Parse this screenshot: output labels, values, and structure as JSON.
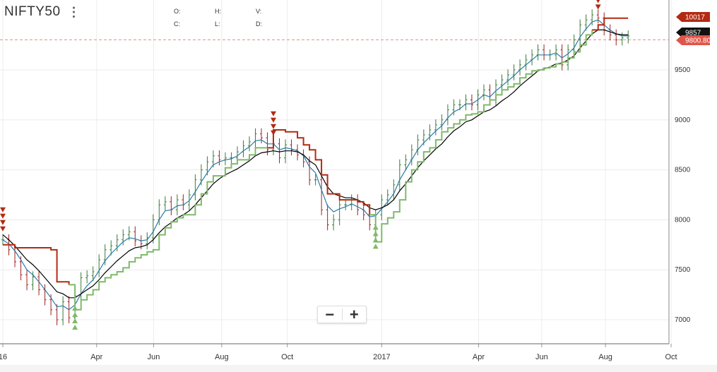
{
  "header": {
    "symbol": "NIFTY50",
    "menu_glyph": "⋮",
    "ohlc_labels": {
      "open": "O:",
      "high": "H:",
      "volume": "V:",
      "close": "C:",
      "low": "L:",
      "diff": "D:"
    }
  },
  "zoom": {
    "minus": "−",
    "plus": "+"
  },
  "price_tags": [
    {
      "label": "10017",
      "value": 10017,
      "color": "#b32a12"
    },
    {
      "label": "9857",
      "value": 9857,
      "color": "#111111"
    },
    {
      "label": "9800.80",
      "value": 9800.8,
      "color": "#e0554a"
    }
  ],
  "colors": {
    "supertrend_up": "#7fba69",
    "supertrend_down": "#b32a12",
    "ema_fast": "#2a7ba8",
    "ema_slow": "#000000",
    "bar_up": "#3a7a3a",
    "bar_down": "#a02020",
    "last_price_line": "#e88a86"
  },
  "chart_data": {
    "type": "line",
    "ylim": [
      6850,
      10200
    ],
    "yticks": [
      7000,
      7500,
      8000,
      8500,
      9000,
      9500
    ],
    "xlim": [
      0,
      109
    ],
    "xticks": [
      {
        "x": 0,
        "label": "16"
      },
      {
        "x": 15.3,
        "label": "Apr"
      },
      {
        "x": 24.6,
        "label": "Jun"
      },
      {
        "x": 35.7,
        "label": "Aug"
      },
      {
        "x": 46.4,
        "label": "Oct"
      },
      {
        "x": 61.8,
        "label": "2017"
      },
      {
        "x": 77.6,
        "label": "Apr"
      },
      {
        "x": 87.9,
        "label": "Jun"
      },
      {
        "x": 98.3,
        "label": "Aug"
      },
      {
        "x": 109,
        "label": "Oct"
      }
    ],
    "last_price": 9800.8,
    "series": [
      {
        "role": "close",
        "values": [
          7800,
          7700,
          7580,
          7450,
          7350,
          7430,
          7300,
          7200,
          7100,
          7000,
          7180,
          7020,
          7240,
          7420,
          7440,
          7480,
          7600,
          7700,
          7740,
          7800,
          7850,
          7880,
          7790,
          7760,
          7820,
          8000,
          8150,
          8180,
          8100,
          8200,
          8150,
          8250,
          8400,
          8500,
          8580,
          8640,
          8600,
          8620,
          8620,
          8680,
          8740,
          8780,
          8860,
          8820,
          8700,
          8760,
          8620,
          8750,
          8700,
          8650,
          8580,
          8400,
          8400,
          8100,
          7950,
          8000,
          8150,
          8150,
          8200,
          8100,
          8050,
          7950,
          8050,
          8200,
          8250,
          8350,
          8550,
          8600,
          8700,
          8800,
          8850,
          8900,
          8950,
          9000,
          9100,
          9150,
          9150,
          9200,
          9150,
          9250,
          9300,
          9200,
          9350,
          9400,
          9450,
          9500,
          9550,
          9600,
          9650,
          9700,
          9650,
          9650,
          9700,
          9550,
          9700,
          9800,
          9950,
          10000,
          10050,
          10020,
          9900,
          9850,
          9800,
          9820,
          9840
        ]
      },
      {
        "role": "ema_fast",
        "values": [
          7800,
          7760,
          7690,
          7600,
          7500,
          7450,
          7380,
          7300,
          7220,
          7130,
          7140,
          7100,
          7150,
          7260,
          7340,
          7400,
          7490,
          7590,
          7660,
          7720,
          7780,
          7820,
          7810,
          7790,
          7800,
          7880,
          8000,
          8090,
          8100,
          8140,
          8150,
          8190,
          8280,
          8380,
          8470,
          8550,
          8580,
          8600,
          8610,
          8640,
          8690,
          8730,
          8790,
          8800,
          8760,
          8760,
          8700,
          8720,
          8710,
          8690,
          8640,
          8530,
          8470,
          8300,
          8140,
          8080,
          8110,
          8130,
          8160,
          8130,
          8100,
          8030,
          8040,
          8110,
          8180,
          8260,
          8400,
          8500,
          8600,
          8700,
          8770,
          8830,
          8890,
          8940,
          9020,
          9080,
          9110,
          9160,
          9160,
          9200,
          9250,
          9230,
          9290,
          9340,
          9390,
          9440,
          9500,
          9550,
          9600,
          9650,
          9650,
          9650,
          9670,
          9620,
          9660,
          9720,
          9830,
          9910,
          9980,
          10000,
          9950,
          9900,
          9860,
          9840,
          9840
        ]
      },
      {
        "role": "ema_slow",
        "values": [
          7850,
          7800,
          7740,
          7670,
          7600,
          7550,
          7490,
          7420,
          7350,
          7280,
          7260,
          7220,
          7220,
          7260,
          7300,
          7340,
          7400,
          7470,
          7530,
          7590,
          7640,
          7690,
          7720,
          7730,
          7750,
          7800,
          7870,
          7930,
          7970,
          8020,
          8050,
          8090,
          8150,
          8220,
          8290,
          8360,
          8410,
          8450,
          8480,
          8510,
          8550,
          8590,
          8640,
          8670,
          8680,
          8690,
          8680,
          8690,
          8690,
          8680,
          8650,
          8590,
          8550,
          8440,
          8330,
          8260,
          8240,
          8220,
          8220,
          8200,
          8170,
          8120,
          8100,
          8120,
          8150,
          8200,
          8290,
          8360,
          8440,
          8520,
          8590,
          8650,
          8710,
          8760,
          8830,
          8890,
          8930,
          8980,
          9000,
          9040,
          9080,
          9100,
          9140,
          9190,
          9230,
          9280,
          9340,
          9390,
          9440,
          9490,
          9510,
          9530,
          9560,
          9570,
          9600,
          9640,
          9720,
          9790,
          9860,
          9900,
          9900,
          9880,
          9860,
          9850,
          9850
        ]
      },
      {
        "role": "supertrend",
        "values": [
          7750,
          7750,
          7720,
          7720,
          7720,
          7720,
          7720,
          7720,
          7700,
          7380,
          7380,
          7350,
          7100,
          7200,
          7250,
          7300,
          7380,
          7420,
          7450,
          7480,
          7520,
          7580,
          7620,
          7650,
          7680,
          7700,
          7850,
          7920,
          7980,
          8020,
          8050,
          8050,
          8150,
          8260,
          8380,
          8440,
          8440,
          8520,
          8560,
          8600,
          8600,
          8650,
          8720,
          8720,
          8720,
          8900,
          8900,
          8880,
          8880,
          8820,
          8750,
          8700,
          8600,
          8450,
          8260,
          8260,
          8200,
          8200,
          8200,
          8180,
          8150,
          8050,
          7780,
          7960,
          8020,
          8080,
          8200,
          8380,
          8500,
          8580,
          8680,
          8720,
          8800,
          8880,
          8920,
          8960,
          9000,
          9050,
          9060,
          9080,
          9150,
          9200,
          9250,
          9300,
          9330,
          9360,
          9420,
          9460,
          9490,
          9500,
          9520,
          9530,
          9560,
          9580,
          9620,
          9680,
          9750,
          9850,
          9900,
          9950,
          10017,
          10017,
          10017,
          10017,
          10017
        ]
      },
      {
        "role": "supertrend_direction",
        "values": [
          -1,
          -1,
          -1,
          -1,
          -1,
          -1,
          -1,
          -1,
          -1,
          -1,
          -1,
          -1,
          1,
          1,
          1,
          1,
          1,
          1,
          1,
          1,
          1,
          1,
          1,
          1,
          1,
          1,
          1,
          1,
          1,
          1,
          1,
          1,
          1,
          1,
          1,
          1,
          1,
          1,
          1,
          1,
          1,
          1,
          1,
          1,
          1,
          -1,
          -1,
          -1,
          -1,
          -1,
          -1,
          -1,
          -1,
          -1,
          -1,
          -1,
          -1,
          -1,
          -1,
          -1,
          -1,
          -1,
          1,
          1,
          1,
          1,
          1,
          1,
          1,
          1,
          1,
          1,
          1,
          1,
          1,
          1,
          1,
          1,
          1,
          1,
          1,
          1,
          1,
          1,
          1,
          1,
          1,
          1,
          1,
          1,
          1,
          1,
          1,
          1,
          1,
          1,
          1,
          1,
          1,
          -1,
          -1,
          -1,
          -1,
          -1,
          -1
        ]
      }
    ]
  }
}
